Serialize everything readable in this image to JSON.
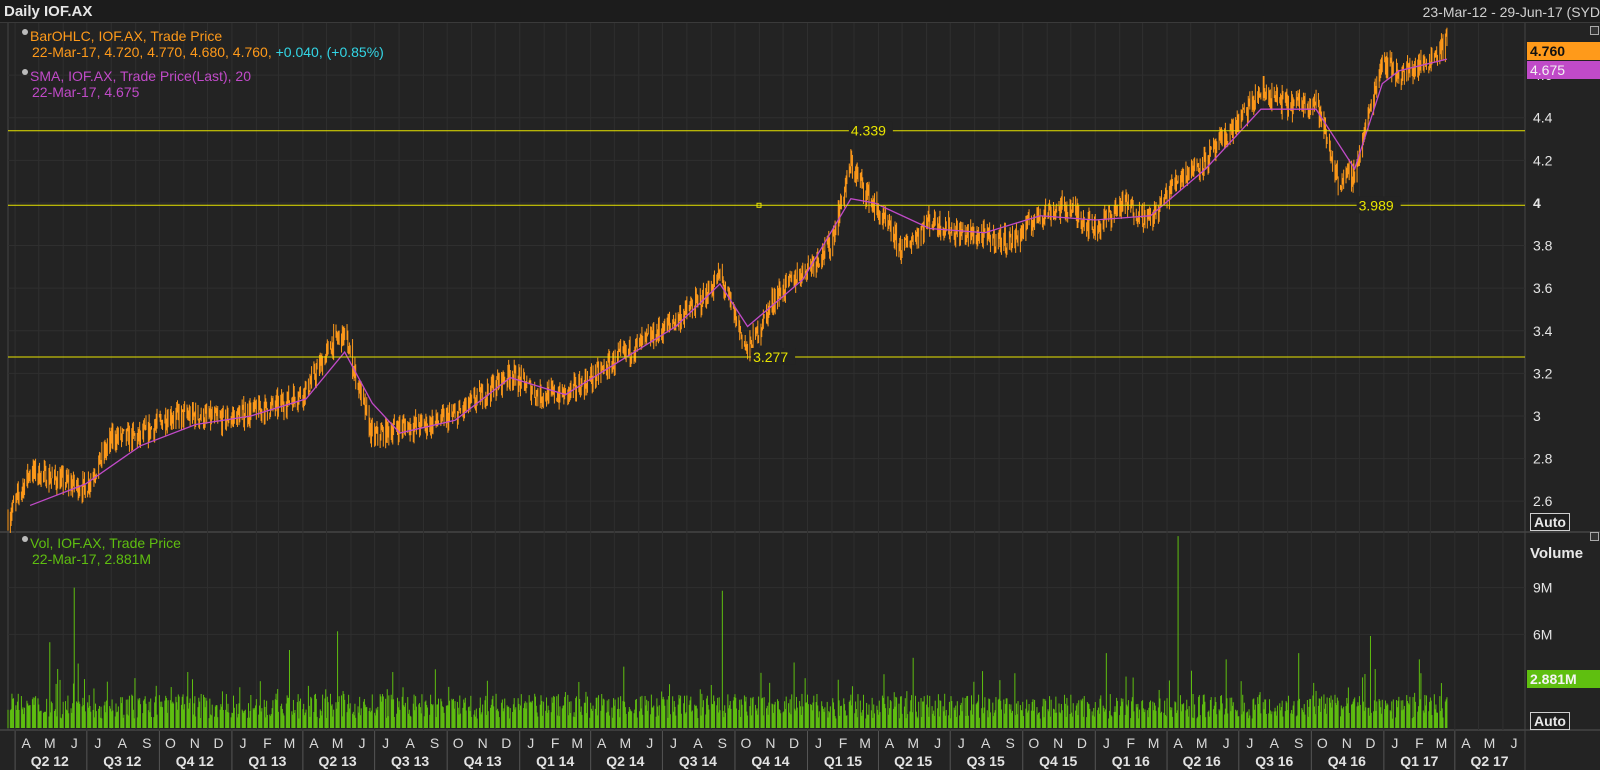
{
  "header": {
    "title": "Daily IOF.AX",
    "range": "23-Mar-12 - 29-Jun-17 (SYD"
  },
  "legend": {
    "bar": {
      "label": "BarOHLC, IOF.AX, Trade Price",
      "values": "22-Mar-17, 4.720, 4.770, 4.680, 4.760,",
      "change": "+0.040, (+0.85%)"
    },
    "sma": {
      "label": "SMA, IOF.AX, Trade Price(Last), ",
      "period": "20",
      "values": "22-Mar-17, 4.675"
    },
    "vol": {
      "label": "Vol, IOF.AX, Trade Price",
      "values": "22-Mar-17, 2.881M"
    }
  },
  "price_tags": {
    "last": "4.760",
    "sma": "4.675",
    "volume": "2.881M"
  },
  "controls": {
    "auto_label": "Auto",
    "volume_title": "Volume"
  },
  "colors": {
    "price": "#ff9a1a",
    "sma": "#c04ac8",
    "volume": "#5fbf10",
    "hline": "#e8e400",
    "background": "#232323"
  },
  "chart_data": [
    {
      "type": "line",
      "title": "Daily IOF.AX",
      "series": [
        {
          "name": "BarOHLC, IOF.AX, Trade Price",
          "kind": "ohlc-close",
          "x": [
            "2012-03-23",
            "2012-04-20",
            "2012-05-25",
            "2012-06-29",
            "2012-08-03",
            "2012-09-07",
            "2012-10-12",
            "2012-11-16",
            "2012-12-21",
            "2013-01-25",
            "2013-03-01",
            "2013-04-05",
            "2013-05-10",
            "2013-05-24",
            "2013-06-28",
            "2013-08-02",
            "2013-09-06",
            "2013-10-11",
            "2013-11-15",
            "2013-12-20",
            "2014-01-24",
            "2014-02-28",
            "2014-04-04",
            "2014-05-09",
            "2014-06-13",
            "2014-07-18",
            "2014-08-22",
            "2014-09-12",
            "2014-10-17",
            "2014-11-21",
            "2014-12-26",
            "2015-01-30",
            "2015-02-25",
            "2015-03-27",
            "2015-05-01",
            "2015-06-05",
            "2015-07-10",
            "2015-08-14",
            "2015-09-18",
            "2015-10-23",
            "2015-11-27",
            "2016-01-01",
            "2016-02-05",
            "2016-03-11",
            "2016-04-15",
            "2016-05-20",
            "2016-06-24",
            "2016-07-29",
            "2016-09-02",
            "2016-10-07",
            "2016-11-04",
            "2016-11-25",
            "2016-12-30",
            "2017-01-20",
            "2017-02-24",
            "2017-03-22"
          ],
          "y": [
            2.52,
            2.74,
            2.7,
            2.66,
            2.9,
            2.9,
            3.0,
            3.0,
            2.98,
            3.02,
            3.05,
            3.12,
            3.35,
            3.38,
            2.9,
            2.95,
            2.96,
            3.0,
            3.1,
            3.2,
            3.1,
            3.1,
            3.18,
            3.28,
            3.36,
            3.45,
            3.55,
            3.66,
            3.3,
            3.56,
            3.68,
            3.8,
            4.18,
            3.98,
            3.78,
            3.92,
            3.86,
            3.84,
            3.82,
            3.95,
            3.98,
            3.88,
            4.0,
            3.92,
            4.12,
            4.2,
            4.35,
            4.52,
            4.46,
            4.48,
            4.1,
            4.14,
            4.68,
            4.6,
            4.66,
            4.76
          ]
        },
        {
          "name": "SMA, IOF.AX, Trade Price(Last), 20",
          "kind": "sma",
          "x": [
            "2012-04-20",
            "2012-06-29",
            "2012-09-07",
            "2012-11-16",
            "2013-01-25",
            "2013-04-05",
            "2013-05-24",
            "2013-06-28",
            "2013-08-02",
            "2013-10-11",
            "2013-12-20",
            "2014-02-28",
            "2014-05-09",
            "2014-07-18",
            "2014-09-12",
            "2014-10-17",
            "2014-12-26",
            "2015-02-25",
            "2015-03-27",
            "2015-06-05",
            "2015-08-14",
            "2015-10-23",
            "2016-01-01",
            "2016-03-11",
            "2016-05-20",
            "2016-07-29",
            "2016-10-07",
            "2016-11-25",
            "2016-12-30",
            "2017-01-20",
            "2017-03-22"
          ],
          "y": [
            2.58,
            2.68,
            2.86,
            2.96,
            3.0,
            3.08,
            3.3,
            3.06,
            2.92,
            2.98,
            3.18,
            3.1,
            3.26,
            3.42,
            3.62,
            3.42,
            3.64,
            4.02,
            4.0,
            3.88,
            3.86,
            3.94,
            3.92,
            3.94,
            4.16,
            4.44,
            4.44,
            4.16,
            4.56,
            4.62,
            4.675
          ]
        }
      ],
      "horizontal_lines": [
        {
          "value": 4.339,
          "label": "4.339",
          "label_date": "2015-02-25"
        },
        {
          "value": 3.989,
          "label": "3.989",
          "label_date": "2016-11-30"
        },
        {
          "value": 3.277,
          "label": "3.277",
          "label_date": "2014-10-24"
        }
      ],
      "ylim": [
        2.46,
        4.84
      ],
      "yticks": [
        "2.6",
        "2.8",
        "3",
        "3.2",
        "3.4",
        "3.6",
        "3.8",
        "4",
        "4.2",
        "4.4",
        "4.6"
      ],
      "xlim": [
        "2012-03-23",
        "2017-06-29"
      ],
      "grid": true,
      "legend": "top-left"
    },
    {
      "type": "bar",
      "title": "Volume",
      "series": [
        {
          "name": "Vol, IOF.AX, Trade Price",
          "x": [
            "2012-04",
            "2012-05",
            "2012-06",
            "2012-09",
            "2012-12",
            "2013-03",
            "2013-05",
            "2013-09",
            "2013-12",
            "2014-06",
            "2014-09",
            "2014-12",
            "2015-02",
            "2015-05",
            "2015-08",
            "2015-11",
            "2016-01",
            "2016-04",
            "2016-06",
            "2016-09",
            "2016-12",
            "2017-02",
            "2017-03"
          ],
          "y_millions": [
            3.2,
            5.5,
            9.0,
            4.0,
            5.5,
            5.0,
            6.2,
            4.6,
            4.0,
            3.6,
            8.8,
            4.2,
            6.3,
            4.5,
            5.3,
            5.6,
            4.8,
            12.3,
            4.4,
            4.8,
            5.9,
            4.4,
            2.881
          ]
        }
      ],
      "ylim": [
        0,
        12.5
      ],
      "yticks": [
        "6M",
        "9M"
      ],
      "grid": true
    }
  ],
  "xaxis": {
    "months": [
      "A",
      "M",
      "J",
      "J",
      "A",
      "S",
      "O",
      "N",
      "D",
      "J",
      "F",
      "M",
      "A",
      "M",
      "J",
      "J",
      "A",
      "S",
      "O",
      "N",
      "D",
      "J",
      "F",
      "M",
      "A",
      "M",
      "J",
      "J",
      "A",
      "S",
      "O",
      "N",
      "D",
      "J",
      "F",
      "M",
      "A",
      "M",
      "J",
      "J",
      "A",
      "S",
      "O",
      "N",
      "D",
      "J",
      "F",
      "M",
      "A",
      "M",
      "J",
      "J",
      "A",
      "S",
      "O",
      "N",
      "D",
      "J",
      "F",
      "M",
      "A",
      "M",
      "J"
    ],
    "quarters": [
      "Q2 12",
      "Q3 12",
      "Q4 12",
      "Q1 13",
      "Q2 13",
      "Q3 13",
      "Q4 13",
      "Q1 14",
      "Q2 14",
      "Q3 14",
      "Q4 14",
      "Q1 15",
      "Q2 15",
      "Q3 15",
      "Q4 15",
      "Q1 16",
      "Q2 16",
      "Q3 16",
      "Q4 16",
      "Q1 17",
      "Q2 17"
    ]
  }
}
